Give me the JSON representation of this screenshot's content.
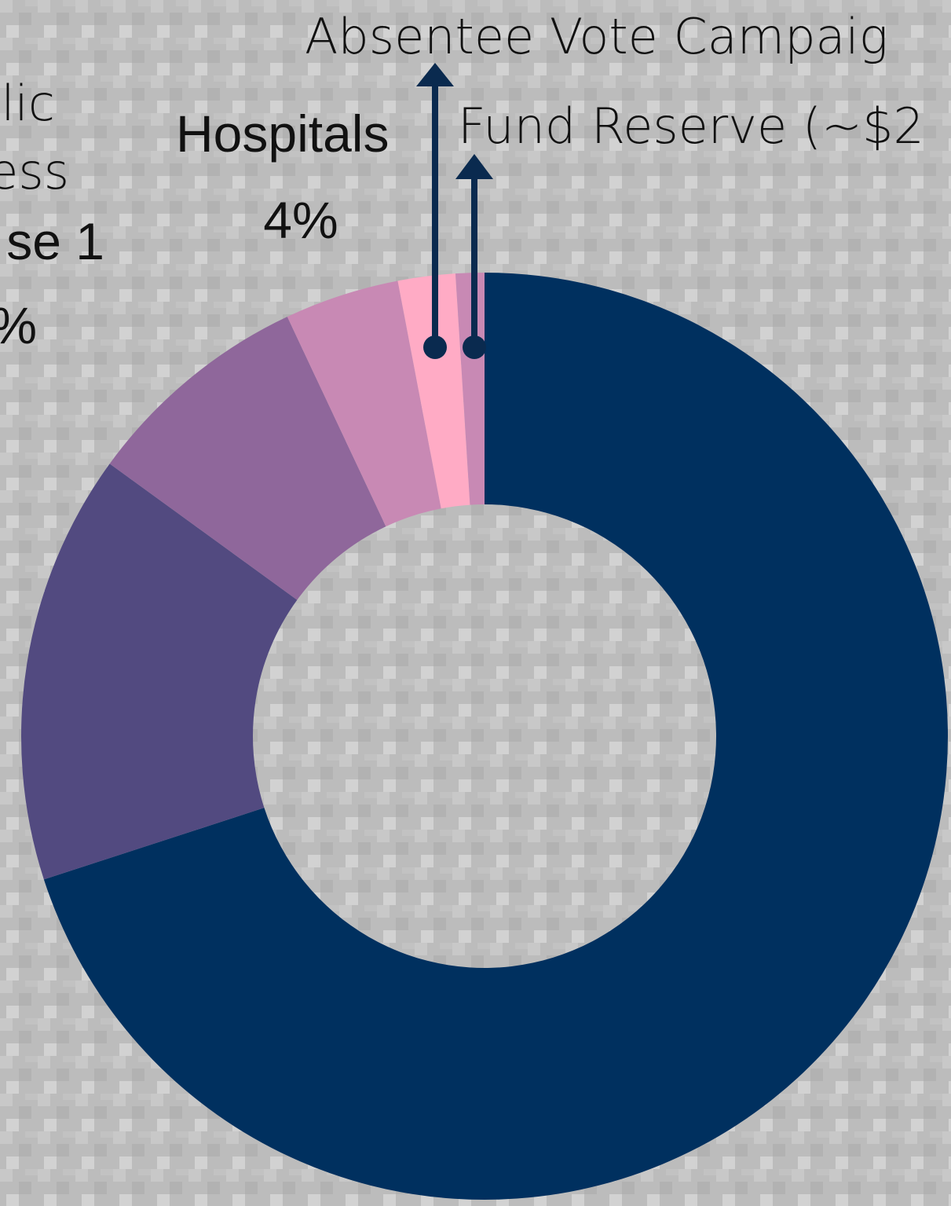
{
  "chart_data": {
    "type": "donut",
    "categories": [
      null,
      null,
      null,
      "Hospitals",
      "Absentee Vote Campaig",
      "Fund Reserve (~$2"
    ],
    "values": [
      70,
      15,
      8,
      4,
      2,
      1
    ],
    "value_labels": [
      null,
      null,
      null,
      "4%",
      null,
      null
    ],
    "colors": [
      "#00305f",
      "#524a80",
      "#8f679b",
      "#c889b4",
      "#ffabc5",
      "#c889b4"
    ],
    "annotations": [
      "lic",
      "ess",
      "se 1",
      "%"
    ]
  }
}
